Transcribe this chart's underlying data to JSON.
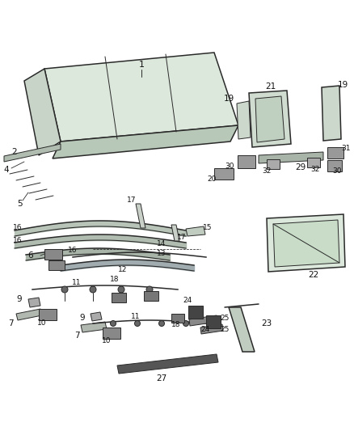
{
  "bg_color": "#ffffff",
  "line_color": "#2a2a2a",
  "fig_width": 4.38,
  "fig_height": 5.33,
  "dpi": 100,
  "label_fs": 7.5,
  "label_color": "#222222"
}
